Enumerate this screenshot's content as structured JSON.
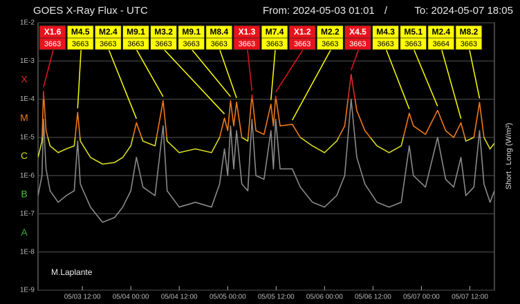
{
  "chart_data": {
    "type": "line",
    "title": "GOES X-Ray Flux - UTC",
    "from": "From: 2024-05-03 01:01",
    "separator": "/",
    "to": "To: 2024-05-07 18:05",
    "y_axis_label": "Short . Long (W/m²)",
    "credit": "M.Laplante",
    "log_scale": true,
    "grid": true,
    "ylim": [
      1e-09,
      0.01
    ],
    "yticks": [
      {
        "value": 1e-09,
        "label": "1E-9"
      },
      {
        "value": 1e-08,
        "label": "1E-8"
      },
      {
        "value": 1e-07,
        "label": "1E-7"
      },
      {
        "value": 1e-06,
        "label": "1E-6"
      },
      {
        "value": 1e-05,
        "label": "1E-5"
      },
      {
        "value": 0.0001,
        "label": "1E-4"
      },
      {
        "value": 0.001,
        "label": "1E-3"
      },
      {
        "value": 0.01,
        "label": "1E-2"
      }
    ],
    "class_ticks": [
      {
        "value": 1e-08,
        "label": "A",
        "color": "#2fb02f"
      },
      {
        "value": 1e-07,
        "label": "B",
        "color": "#4cc23c"
      },
      {
        "value": 1e-06,
        "label": "C",
        "color": "#d8dc20"
      },
      {
        "value": 1e-05,
        "label": "M",
        "color": "#f07a1a"
      },
      {
        "value": 0.0001,
        "label": "X",
        "color": "#e0282a"
      }
    ],
    "xlim": [
      "2024-05-03T01:01",
      "2024-05-07T18:05"
    ],
    "xticks": [
      {
        "value": "2024-05-03T12:00",
        "label": "05/03 12:00"
      },
      {
        "value": "2024-05-04T00:00",
        "label": "05/04 00:00"
      },
      {
        "value": "2024-05-04T12:00",
        "label": "05/04 12:00"
      },
      {
        "value": "2024-05-05T00:00",
        "label": "05/05 00:00"
      },
      {
        "value": "2024-05-05T12:00",
        "label": "05/05 12:00"
      },
      {
        "value": "2024-05-06T00:00",
        "label": "05/06 00:00"
      },
      {
        "value": "2024-05-06T12:00",
        "label": "05/06 12:00"
      },
      {
        "value": "2024-05-07T00:00",
        "label": "05/07 00:00"
      },
      {
        "value": "2024-05-07T12:00",
        "label": "05/07 12:00"
      }
    ],
    "x": [
      "2024-05-03T01:01",
      "2024-05-03T02:00",
      "2024-05-03T02:22",
      "2024-05-03T03:00",
      "2024-05-03T04:00",
      "2024-05-03T06:00",
      "2024-05-03T08:00",
      "2024-05-03T10:00",
      "2024-05-03T10:50",
      "2024-05-03T11:30",
      "2024-05-03T14:00",
      "2024-05-03T17:00",
      "2024-05-03T20:00",
      "2024-05-03T22:00",
      "2024-05-04T00:00",
      "2024-05-04T01:24",
      "2024-05-04T03:00",
      "2024-05-04T06:00",
      "2024-05-04T08:00",
      "2024-05-04T09:00",
      "2024-05-04T12:00",
      "2024-05-04T16:00",
      "2024-05-04T20:00",
      "2024-05-04T22:00",
      "2024-05-04T23:12",
      "2024-05-05T00:00",
      "2024-05-05T00:43",
      "2024-05-05T01:30",
      "2024-05-05T02:12",
      "2024-05-05T03:30",
      "2024-05-05T05:00",
      "2024-05-05T06:01",
      "2024-05-05T07:00",
      "2024-05-05T09:00",
      "2024-05-05T10:43",
      "2024-05-05T11:20",
      "2024-05-05T11:54",
      "2024-05-05T13:00",
      "2024-05-05T16:00",
      "2024-05-05T18:00",
      "2024-05-05T21:00",
      "2024-05-06T00:00",
      "2024-05-06T03:00",
      "2024-05-06T05:00",
      "2024-05-06T06:35",
      "2024-05-06T08:00",
      "2024-05-06T10:00",
      "2024-05-06T13:00",
      "2024-05-06T16:00",
      "2024-05-06T19:00",
      "2024-05-06T21:00",
      "2024-05-06T22:00",
      "2024-05-07T01:00",
      "2024-05-07T04:00",
      "2024-05-07T06:00",
      "2024-05-07T08:00",
      "2024-05-07T09:48",
      "2024-05-07T11:00",
      "2024-05-07T13:00",
      "2024-05-07T14:24",
      "2024-05-07T15:30",
      "2024-05-07T17:00",
      "2024-05-07T18:05"
    ],
    "series": [
      {
        "name": "Short",
        "color": "#8a8a8a",
        "values": [
          3e-07,
          1e-06,
          3e-05,
          1.5e-06,
          4e-07,
          2e-07,
          3e-07,
          4e-07,
          8e-06,
          6e-07,
          1.5e-07,
          6e-08,
          8e-08,
          1.5e-07,
          4e-07,
          3e-06,
          5e-07,
          3e-07,
          2e-05,
          4e-07,
          1.5e-07,
          2e-07,
          1.5e-07,
          6e-07,
          5e-06,
          1e-06,
          2e-05,
          1.5e-06,
          1.5e-05,
          6e-07,
          4e-07,
          3e-05,
          1e-06,
          8e-07,
          1.5e-05,
          1.5e-06,
          3e-05,
          1.5e-06,
          1.5e-06,
          5e-07,
          2e-07,
          1.5e-07,
          3e-07,
          1e-06,
          0.0001,
          3e-06,
          6e-07,
          2e-07,
          1.5e-07,
          2e-07,
          6e-06,
          1e-06,
          5e-07,
          1e-05,
          8e-07,
          5e-07,
          3e-06,
          3e-07,
          5e-07,
          1.5e-05,
          6e-07,
          2e-07,
          4e-07
        ]
      },
      {
        "name": "Long",
        "color": "#d8dc20",
        "color_by_class": true,
        "values": [
          3e-06,
          8e-06,
          0.00016,
          1.5e-05,
          6e-06,
          4e-06,
          5e-06,
          6e-06,
          4.5e-05,
          8e-06,
          3e-06,
          2e-06,
          2.2e-06,
          3e-06,
          6e-06,
          2.4e-05,
          8e-06,
          6e-06,
          9.1e-05,
          8e-06,
          4e-06,
          5e-06,
          4e-06,
          1e-05,
          3.2e-05,
          1.5e-05,
          9.1e-05,
          2e-05,
          8.4e-05,
          1e-05,
          8e-06,
          0.00013,
          1.5e-05,
          1.2e-05,
          7.4e-05,
          2e-05,
          0.00012,
          2e-05,
          2.2e-05,
          1e-05,
          6e-06,
          4e-06,
          8e-06,
          2e-05,
          0.00045,
          5e-05,
          1.5e-05,
          6e-06,
          4e-06,
          6e-06,
          4.3e-05,
          2e-05,
          1.2e-05,
          5.1e-05,
          1.5e-05,
          1e-05,
          2.4e-05,
          8e-06,
          1e-05,
          8.2e-05,
          1e-05,
          5e-06,
          7e-06
        ]
      }
    ],
    "flares": [
      {
        "label": "X1.6",
        "value": 0.00016,
        "region": "3663",
        "x": "2024-05-03T02:22",
        "color": "#e8141c"
      },
      {
        "label": "M4.5",
        "value": 4.5e-05,
        "region": "3663",
        "x": "2024-05-03T10:50",
        "color": "#ffff00"
      },
      {
        "label": "M2.4",
        "value": 2.4e-05,
        "region": "3663",
        "x": "2024-05-04T01:24",
        "color": "#ffff00"
      },
      {
        "label": "M9.1",
        "value": 9.1e-05,
        "region": "3663",
        "x": "2024-05-04T08:00",
        "color": "#ffff00"
      },
      {
        "label": "M3.2",
        "value": 3.2e-05,
        "region": "3663",
        "x": "2024-05-04T23:12",
        "color": "#ffff00"
      },
      {
        "label": "M9.1",
        "value": 9.1e-05,
        "region": "3663",
        "x": "2024-05-05T00:43",
        "color": "#ffff00"
      },
      {
        "label": "M8.4",
        "value": 8.4e-05,
        "region": "3663",
        "x": "2024-05-05T02:12",
        "color": "#ffff00"
      },
      {
        "label": "X1.3",
        "value": 0.00013,
        "region": "3663",
        "x": "2024-05-05T06:01",
        "color": "#e8141c"
      },
      {
        "label": "M7.4",
        "value": 7.4e-05,
        "region": "3663",
        "x": "2024-05-05T10:43",
        "color": "#ffff00"
      },
      {
        "label": "X1.2",
        "value": 0.00012,
        "region": "3663",
        "x": "2024-05-05T11:54",
        "color": "#e8141c"
      },
      {
        "label": "M2.2",
        "value": 2.2e-05,
        "region": "3663",
        "x": "2024-05-05T16:00",
        "color": "#ffff00"
      },
      {
        "label": "X4.5",
        "value": 0.00045,
        "region": "3663",
        "x": "2024-05-06T06:35",
        "color": "#e8141c"
      },
      {
        "label": "M4.3",
        "value": 4.3e-05,
        "region": "3663",
        "x": "2024-05-06T21:00",
        "color": "#ffff00"
      },
      {
        "label": "M5.1",
        "value": 5.1e-05,
        "region": "3663",
        "x": "2024-05-07T04:00",
        "color": "#ffff00"
      },
      {
        "label": "M2.4",
        "value": 2.4e-05,
        "region": "3664",
        "x": "2024-05-07T09:48",
        "color": "#ffff00"
      },
      {
        "label": "M8.2",
        "value": 8.2e-05,
        "region": "3663",
        "x": "2024-05-07T14:24",
        "color": "#ffff00"
      }
    ]
  }
}
